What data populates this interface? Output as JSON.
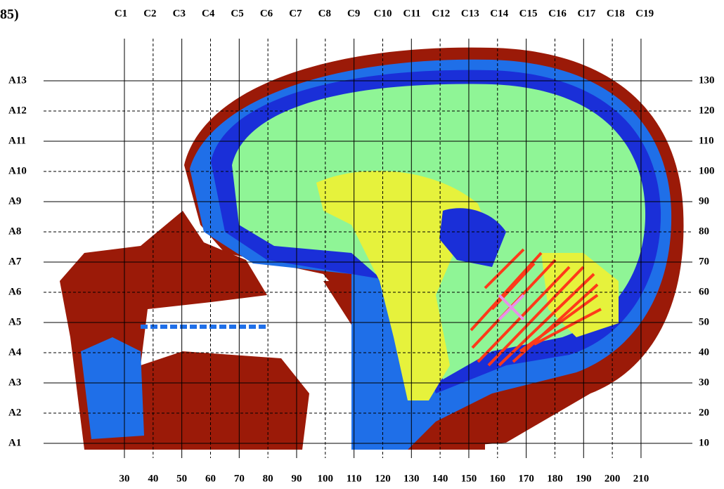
{
  "panel_label": "85)",
  "column_labels": [
    "C1",
    "C2",
    "C3",
    "C4",
    "C5",
    "C6",
    "C7",
    "C8",
    "C9",
    "C10",
    "C11",
    "C12",
    "C13",
    "C14",
    "C15",
    "C16",
    "C17",
    "C18",
    "C19"
  ],
  "row_labels": [
    "A1",
    "A2",
    "A3",
    "A4",
    "A5",
    "A6",
    "A7",
    "A8",
    "A9",
    "A10",
    "A11",
    "A12",
    "A13"
  ],
  "x_ticks": [
    30,
    40,
    50,
    60,
    70,
    80,
    90,
    100,
    110,
    120,
    130,
    140,
    150,
    160,
    170,
    180,
    190,
    200,
    210
  ],
  "y_ticks": [
    10,
    20,
    30,
    40,
    50,
    60,
    70,
    80,
    90,
    100,
    110,
    120,
    130
  ]
}
